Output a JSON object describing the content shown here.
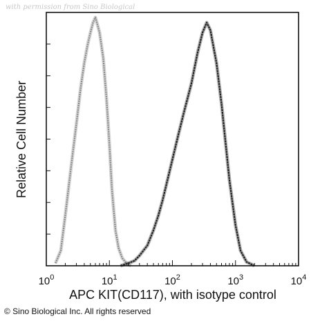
{
  "watermark": "with permission from Sino Biological",
  "copyright": "© Sino Biological Inc. All rights reserved",
  "chart_data": {
    "type": "area",
    "xscale": "log",
    "xlabel": "APC KIT(CD117), with isotype control",
    "ylabel": "Relative Cell Number",
    "xlim": [
      1,
      10000
    ],
    "ylim": [
      0,
      100
    ],
    "grid": false,
    "x_ticks": [
      1,
      10,
      100,
      1000,
      10000
    ],
    "x_tick_labels": [
      {
        "base": "10",
        "exp": "0"
      },
      {
        "base": "10",
        "exp": "1"
      },
      {
        "base": "10",
        "exp": "2"
      },
      {
        "base": "10",
        "exp": "3"
      },
      {
        "base": "10",
        "exp": "4"
      }
    ],
    "series": [
      {
        "role": "isotype-control",
        "color": "#8a8a8a",
        "x": [
          1.4,
          1.7,
          2.0,
          2.5,
          3.0,
          3.5,
          4.0,
          4.5,
          5.0,
          5.5,
          6.0,
          6.5,
          7.0,
          8.0,
          9.0,
          10.0,
          11.0,
          12.5,
          14.0,
          16.0,
          18.0,
          20.0,
          22.0
        ],
        "y": [
          1,
          6,
          20,
          40,
          56,
          70,
          80,
          87,
          92,
          96,
          98,
          95,
          92,
          82,
          66,
          48,
          30,
          14,
          7,
          3,
          1.5,
          0.5,
          0
        ]
      },
      {
        "role": "apc-kit-cd117",
        "color": "#222222",
        "x": [
          15,
          20,
          25,
          30,
          40,
          50,
          60,
          70,
          80,
          100,
          125,
          150,
          200,
          250,
          300,
          350,
          400,
          500,
          600,
          700,
          800,
          1000,
          1200,
          1500,
          2000
        ],
        "y": [
          0,
          1,
          2,
          4,
          8,
          14,
          20,
          26,
          32,
          42,
          52,
          60,
          72,
          84,
          92,
          96,
          93,
          80,
          64,
          48,
          34,
          16,
          6,
          1.5,
          0
        ]
      }
    ]
  }
}
